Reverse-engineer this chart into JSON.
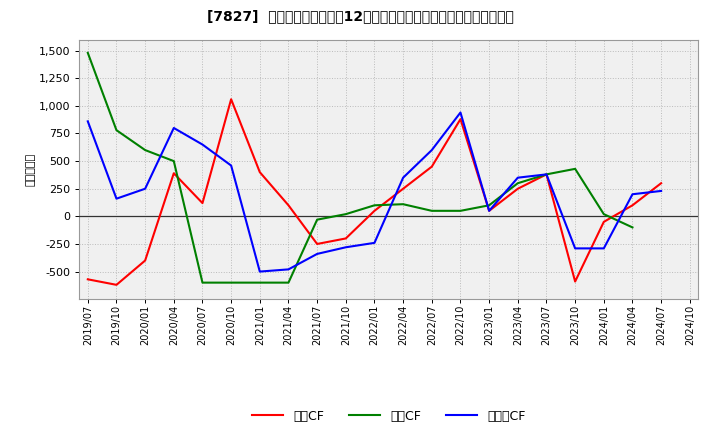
{
  "title": "[7827]  キャッシュフローの12か月移動合計の対前年同期増減額の推移",
  "ylabel": "（百万円）",
  "background_color": "#ffffff",
  "plot_bg_color": "#f0f0f0",
  "x_labels": [
    "2019/07",
    "2019/10",
    "2020/01",
    "2020/04",
    "2020/07",
    "2020/10",
    "2021/01",
    "2021/04",
    "2021/07",
    "2021/10",
    "2022/01",
    "2022/04",
    "2022/07",
    "2022/10",
    "2023/01",
    "2023/04",
    "2023/07",
    "2023/10",
    "2024/01",
    "2024/04",
    "2024/07",
    "2024/10"
  ],
  "eigyo_cf": [
    -570,
    -620,
    -400,
    390,
    120,
    1060,
    400,
    100,
    -250,
    -200,
    50,
    250,
    450,
    880,
    50,
    250,
    380,
    -590,
    -50,
    100,
    300,
    null
  ],
  "toshi_cf": [
    1480,
    780,
    600,
    500,
    -600,
    -600,
    -600,
    -600,
    -30,
    20,
    100,
    110,
    50,
    50,
    100,
    300,
    380,
    430,
    20,
    -100,
    null,
    null
  ],
  "free_cf": [
    860,
    160,
    250,
    800,
    650,
    460,
    -500,
    -480,
    -340,
    -280,
    -240,
    350,
    600,
    940,
    50,
    350,
    380,
    -290,
    -290,
    200,
    230,
    null
  ],
  "eigyo_color": "#ff0000",
  "toshi_color": "#008000",
  "free_color": "#0000ff",
  "ylim_min": -750,
  "ylim_max": 1600,
  "yticks": [
    -500,
    -250,
    0,
    250,
    500,
    750,
    1000,
    1250,
    1500
  ],
  "legend_labels": [
    "営業CF",
    "投資CF",
    "フリーCF"
  ]
}
